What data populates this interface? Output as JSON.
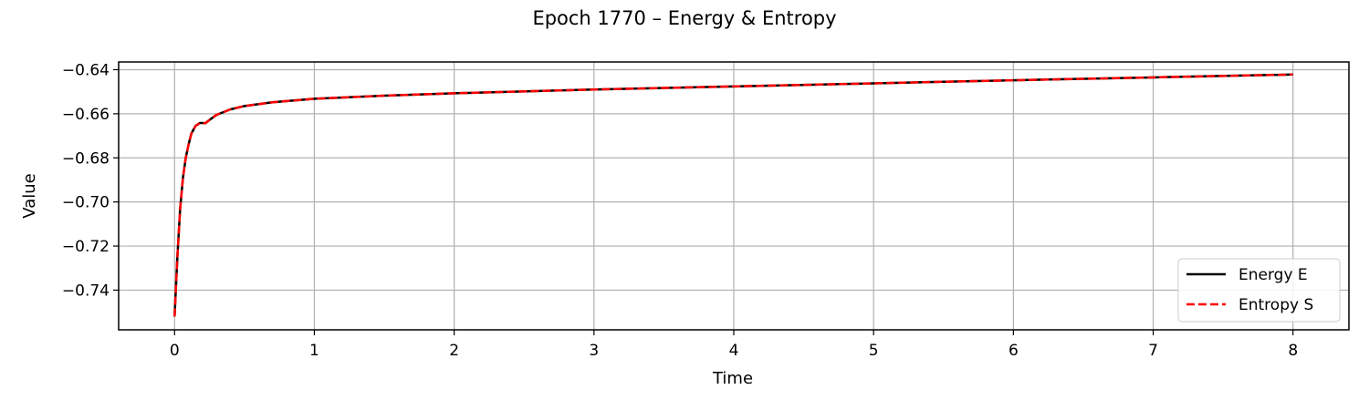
{
  "chart_data": {
    "type": "line",
    "title": "Epoch 1770 – Energy & Entropy",
    "xlabel": "Time",
    "ylabel": "Value",
    "xlim": [
      -0.4,
      8.4
    ],
    "ylim": [
      -0.758,
      -0.6365
    ],
    "xticks": [
      0,
      1,
      2,
      3,
      4,
      5,
      6,
      7,
      8
    ],
    "xtick_labels": [
      "0",
      "1",
      "2",
      "3",
      "4",
      "5",
      "6",
      "7",
      "8"
    ],
    "yticks": [
      -0.74,
      -0.72,
      -0.7,
      -0.68,
      -0.66,
      -0.64
    ],
    "ytick_labels": [
      "−0.74",
      "−0.72",
      "−0.70",
      "−0.68",
      "−0.66",
      "−0.64"
    ],
    "grid": true,
    "legend_position": "lower right",
    "series": [
      {
        "name": "Energy E",
        "color": "#000000",
        "style": "solid",
        "x": [
          0,
          0.02,
          0.04,
          0.06,
          0.08,
          0.1,
          0.12,
          0.15,
          0.18,
          0.2,
          0.22,
          0.25,
          0.3,
          0.4,
          0.5,
          0.7,
          1.0,
          1.5,
          2.0,
          3.0,
          4.0,
          5.0,
          6.0,
          7.0,
          8.0
        ],
        "y": [
          -0.752,
          -0.725,
          -0.703,
          -0.689,
          -0.68,
          -0.674,
          -0.669,
          -0.6655,
          -0.6642,
          -0.6642,
          -0.6643,
          -0.6628,
          -0.6605,
          -0.658,
          -0.6565,
          -0.6548,
          -0.6532,
          -0.6518,
          -0.6507,
          -0.649,
          -0.6476,
          -0.6462,
          -0.6448,
          -0.6435,
          -0.6422
        ]
      },
      {
        "name": "Entropy S",
        "color": "#ff0000",
        "style": "dashed",
        "x": [
          0,
          0.02,
          0.04,
          0.06,
          0.08,
          0.1,
          0.12,
          0.15,
          0.18,
          0.2,
          0.22,
          0.25,
          0.3,
          0.4,
          0.5,
          0.7,
          1.0,
          1.5,
          2.0,
          3.0,
          4.0,
          5.0,
          6.0,
          7.0,
          8.0
        ],
        "y": [
          -0.752,
          -0.725,
          -0.703,
          -0.689,
          -0.68,
          -0.674,
          -0.669,
          -0.6655,
          -0.6642,
          -0.6642,
          -0.6643,
          -0.6628,
          -0.6605,
          -0.658,
          -0.6565,
          -0.6548,
          -0.6532,
          -0.6518,
          -0.6507,
          -0.649,
          -0.6476,
          -0.6462,
          -0.6448,
          -0.6435,
          -0.6422
        ]
      }
    ]
  }
}
